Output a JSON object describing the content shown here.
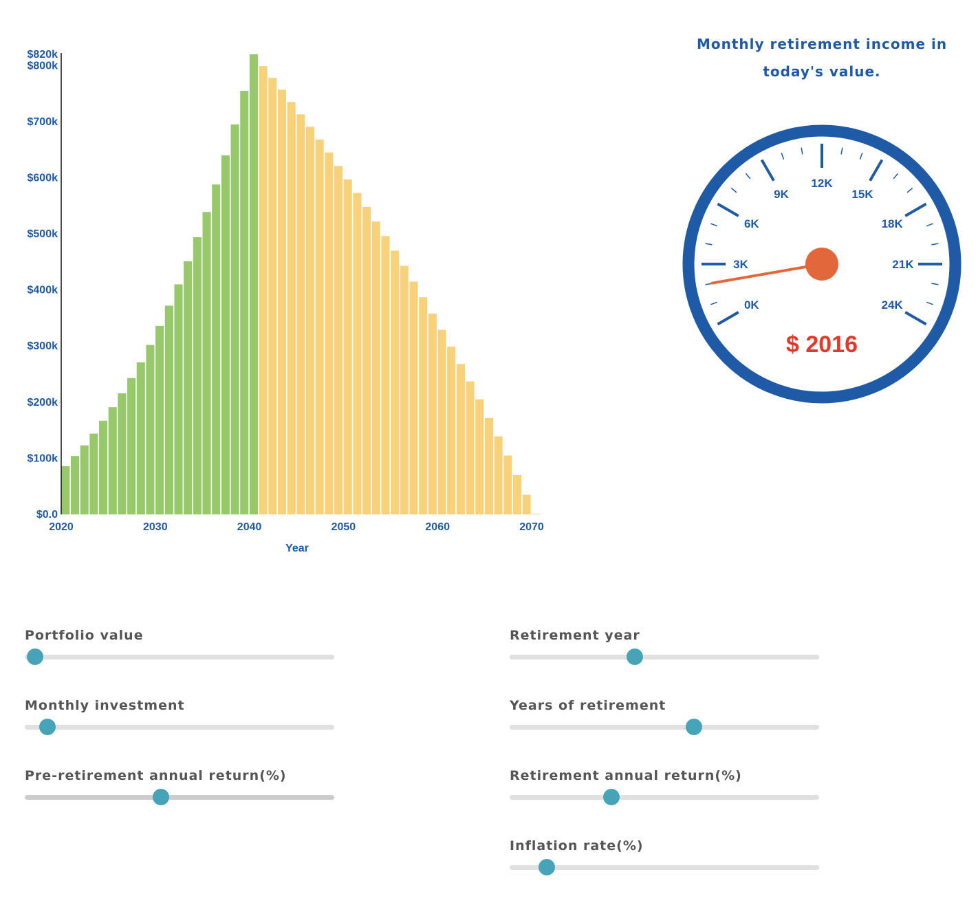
{
  "chart_data": {
    "type": "bar",
    "xlabel": "Year",
    "ylabel": "",
    "ylim": [
      0,
      820000
    ],
    "xlim": [
      2020,
      2070
    ],
    "x_ticks": [
      "2020",
      "2030",
      "2040",
      "2050",
      "2060",
      "2070"
    ],
    "y_ticks": [
      "$0.0",
      "$100k",
      "$200k",
      "$300k",
      "$400k",
      "$500k",
      "$600k",
      "$700k",
      "$800k",
      "$820k"
    ],
    "retirement_year": 2041,
    "colors": {
      "accumulation": "#97c96b",
      "retirement": "#f7d27a",
      "axis": "#1f5aa6"
    },
    "series": [
      {
        "name": "",
        "x": [
          2020,
          2021,
          2022,
          2023,
          2024,
          2025,
          2026,
          2027,
          2028,
          2029,
          2030,
          2031,
          2032,
          2033,
          2034,
          2035,
          2036,
          2037,
          2038,
          2039,
          2040
        ],
        "values": [
          86000,
          104000,
          123000,
          144000,
          167000,
          191000,
          216000,
          243000,
          271000,
          302000,
          336000,
          372000,
          410000,
          451000,
          494000,
          539000,
          588000,
          640000,
          695000,
          755000,
          820000
        ]
      },
      {
        "name": "",
        "x": [
          2041,
          2042,
          2043,
          2044,
          2045,
          2046,
          2047,
          2048,
          2049,
          2050,
          2051,
          2052,
          2053,
          2054,
          2055,
          2056,
          2057,
          2058,
          2059,
          2060,
          2061,
          2062,
          2063,
          2064,
          2065,
          2066,
          2067,
          2068,
          2069,
          2070
        ],
        "values": [
          799000,
          778000,
          757000,
          735000,
          713000,
          691000,
          668000,
          645000,
          621000,
          597000,
          573000,
          548000,
          522000,
          496000,
          470000,
          443000,
          415000,
          387000,
          358000,
          329000,
          299000,
          268000,
          237000,
          205000,
          172000,
          139000,
          105000,
          70000,
          35000,
          1000
        ]
      }
    ]
  },
  "gauge": {
    "title": "Monthly retirement income in today's value.",
    "value": 2016,
    "value_text": "$ 2016",
    "min": 0,
    "max": 24000,
    "labels": [
      "0K",
      "3K",
      "6K",
      "9K",
      "12K",
      "15K",
      "18K",
      "21K",
      "24K"
    ],
    "colors": {
      "ring": "#1f5aa6",
      "needle": "#e2673a",
      "value": "#e23a28"
    }
  },
  "sliders": {
    "portfolio_value": {
      "label": "Portfolio value",
      "level": 0.034
    },
    "monthly_investment": {
      "label": "Monthly investment",
      "level": 0.074
    },
    "pre_retirement_return": {
      "label": "Pre-retirement annual return(%)",
      "level": 0.44
    },
    "retirement_year": {
      "label": "Retirement year",
      "level": 0.405
    },
    "years_of_retirement": {
      "label": "Years of retirement",
      "level": 0.595
    },
    "retirement_return": {
      "label": "Retirement annual return(%)",
      "level": 0.328
    },
    "inflation_rate": {
      "label": "Inflation rate(%)",
      "level": 0.12
    }
  }
}
